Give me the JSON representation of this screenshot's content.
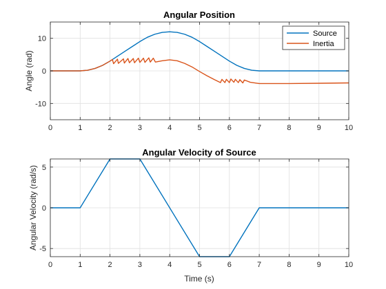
{
  "chart_data": [
    {
      "type": "line",
      "title": "Angular Position",
      "xlabel": "",
      "ylabel": "Angle (rad)",
      "xlim": [
        0,
        10
      ],
      "ylim": [
        -15,
        15
      ],
      "xticks": [
        0,
        1,
        2,
        3,
        4,
        5,
        6,
        7,
        8,
        9,
        10
      ],
      "xtick_labels": [
        "0",
        "1",
        "2",
        "3",
        "4",
        "5",
        "6",
        "7",
        "8",
        "9",
        "10"
      ],
      "yticks": [
        -10,
        0,
        10
      ],
      "ytick_labels": [
        "-10",
        "0",
        "10"
      ],
      "grid": true,
      "legend_position": "top-right",
      "series": [
        {
          "name": "Source",
          "color": "#0072BD",
          "x": [
            0,
            1,
            1.25,
            1.5,
            1.75,
            2,
            2.25,
            2.5,
            2.75,
            3,
            3.25,
            3.5,
            3.75,
            4,
            4.25,
            4.5,
            4.75,
            5,
            5.25,
            5.5,
            5.75,
            6,
            6.25,
            6.5,
            6.75,
            7,
            8,
            9,
            10
          ],
          "y": [
            0,
            0,
            0.19,
            0.75,
            1.69,
            3,
            4.5,
            6,
            7.5,
            9,
            10.31,
            11.25,
            11.81,
            12,
            11.81,
            11.25,
            10.31,
            9,
            7.5,
            6,
            4.5,
            3,
            1.69,
            0.75,
            0.19,
            0,
            0,
            0,
            0
          ]
        },
        {
          "name": "Inertia",
          "color": "#D95319",
          "x": [
            0,
            1,
            1.25,
            1.5,
            1.75,
            2,
            2.08,
            2.12,
            2.25,
            2.28,
            2.45,
            2.48,
            2.6,
            2.65,
            2.78,
            2.82,
            2.95,
            3.0,
            3.12,
            3.17,
            3.3,
            3.35,
            3.45,
            3.52,
            3.75,
            4,
            4.25,
            4.5,
            4.75,
            5,
            5.25,
            5.5,
            5.7,
            5.75,
            5.85,
            5.9,
            6.0,
            6.05,
            6.15,
            6.2,
            6.3,
            6.35,
            6.45,
            6.5,
            6.7,
            7,
            8,
            9,
            10
          ],
          "y": [
            0,
            0,
            0.19,
            0.75,
            1.69,
            3.0,
            3.5,
            2.2,
            3.6,
            2.3,
            3.7,
            2.4,
            3.8,
            2.5,
            3.8,
            2.5,
            3.9,
            2.6,
            3.9,
            2.6,
            4.0,
            2.7,
            3.9,
            2.7,
            3.1,
            3.4,
            3.1,
            2.3,
            1.2,
            -0.2,
            -1.5,
            -2.7,
            -3.6,
            -2.6,
            -3.6,
            -2.6,
            -3.6,
            -2.5,
            -3.5,
            -2.6,
            -3.6,
            -2.7,
            -3.7,
            -2.8,
            -3.5,
            -3.9,
            -3.9,
            -3.8,
            -3.7
          ]
        }
      ]
    },
    {
      "type": "line",
      "title": "Angular Velocity of Source",
      "xlabel": "Time (s)",
      "ylabel": "Angular Velocity (rad/s)",
      "xlim": [
        0,
        10
      ],
      "ylim": [
        -6,
        6
      ],
      "xticks": [
        0,
        1,
        2,
        3,
        4,
        5,
        6,
        7,
        8,
        9,
        10
      ],
      "xtick_labels": [
        "0",
        "1",
        "2",
        "3",
        "4",
        "5",
        "6",
        "7",
        "8",
        "9",
        "10"
      ],
      "yticks": [
        -5,
        0,
        5
      ],
      "ytick_labels": [
        "-5",
        "0",
        "5"
      ],
      "grid": true,
      "series": [
        {
          "name": "",
          "color": "#0072BD",
          "x": [
            0,
            1,
            2,
            3,
            5,
            6,
            7,
            10
          ],
          "y": [
            0,
            0,
            6,
            6,
            -6,
            -6,
            0,
            0
          ]
        }
      ]
    }
  ]
}
